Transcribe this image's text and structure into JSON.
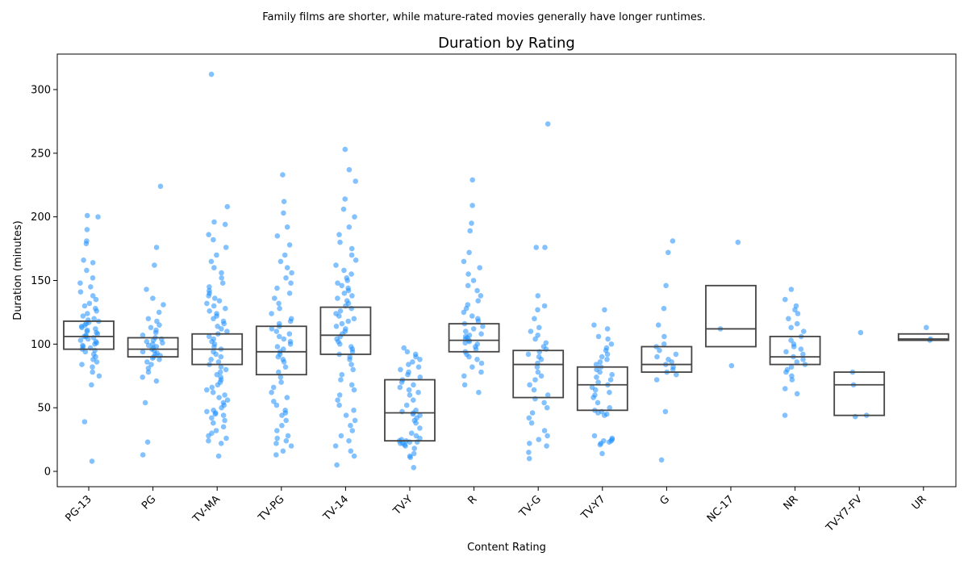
{
  "caption": "Family films are shorter, while mature-rated movies generally have longer runtimes.",
  "chart_data": {
    "type": "box+strip",
    "title": "Duration by Rating",
    "xlabel": "Content Rating",
    "ylabel": "Duration (minutes)",
    "ylim": [
      -12,
      326
    ],
    "yticks": [
      0,
      50,
      100,
      150,
      200,
      250,
      300
    ],
    "grid": false,
    "point_color": "#1e90ff",
    "box_color": "#444444",
    "categories": [
      "PG-13",
      "PG",
      "TV-MA",
      "TV-PG",
      "TV-14",
      "TV-Y",
      "R",
      "TV-G",
      "TV-Y7",
      "G",
      "NC-17",
      "NR",
      "TV-Y7-FV",
      "UR"
    ],
    "boxes": [
      {
        "category": "PG-13",
        "q1": 96,
        "median": 106,
        "q3": 118
      },
      {
        "category": "PG",
        "q1": 90,
        "median": 96,
        "q3": 105
      },
      {
        "category": "TV-MA",
        "q1": 84,
        "median": 96,
        "q3": 108
      },
      {
        "category": "TV-PG",
        "q1": 76,
        "median": 94,
        "q3": 114
      },
      {
        "category": "TV-14",
        "q1": 92,
        "median": 107,
        "q3": 129
      },
      {
        "category": "TV-Y",
        "q1": 24,
        "median": 46,
        "q3": 72
      },
      {
        "category": "R",
        "q1": 94,
        "median": 103,
        "q3": 116
      },
      {
        "category": "TV-G",
        "q1": 58,
        "median": 84,
        "q3": 95
      },
      {
        "category": "TV-Y7",
        "q1": 48,
        "median": 68,
        "q3": 82
      },
      {
        "category": "G",
        "q1": 78,
        "median": 84,
        "q3": 98
      },
      {
        "category": "NC-17",
        "q1": 98,
        "median": 112,
        "q3": 146
      },
      {
        "category": "NR",
        "q1": 84,
        "median": 90,
        "q3": 106
      },
      {
        "category": "TV-Y7-FV",
        "q1": 44,
        "median": 68,
        "q3": 78
      },
      {
        "category": "UR",
        "q1": 103,
        "median": 104,
        "q3": 108
      }
    ],
    "points": [
      {
        "category": "PG-13",
        "values": [
          8,
          39,
          68,
          75,
          78,
          82,
          84,
          86,
          88,
          90,
          92,
          94,
          95,
          96,
          97,
          98,
          99,
          100,
          101,
          102,
          103,
          104,
          105,
          106,
          106,
          107,
          108,
          109,
          110,
          111,
          112,
          113,
          114,
          115,
          116,
          117,
          118,
          119,
          120,
          122,
          124,
          126,
          128,
          130,
          132,
          135,
          138,
          141,
          145,
          148,
          152,
          158,
          164,
          166,
          179,
          181,
          190,
          200,
          201
        ]
      },
      {
        "category": "PG",
        "values": [
          13,
          23,
          54,
          71,
          74,
          78,
          81,
          84,
          86,
          88,
          89,
          90,
          91,
          92,
          93,
          94,
          95,
          96,
          97,
          98,
          99,
          100,
          101,
          102,
          103,
          104,
          105,
          107,
          109,
          111,
          113,
          115,
          118,
          120,
          125,
          131,
          136,
          143,
          162,
          176,
          224
        ]
      },
      {
        "category": "TV-MA",
        "values": [
          12,
          22,
          24,
          26,
          28,
          30,
          32,
          35,
          38,
          40,
          42,
          44,
          45,
          46,
          47,
          48,
          50,
          52,
          54,
          56,
          58,
          60,
          62,
          64,
          66,
          68,
          70,
          72,
          74,
          76,
          78,
          80,
          82,
          84,
          86,
          88,
          90,
          92,
          94,
          96,
          98,
          100,
          102,
          104,
          106,
          108,
          110,
          112,
          114,
          116,
          118,
          120,
          122,
          124,
          126,
          128,
          130,
          132,
          134,
          136,
          138,
          140,
          142,
          145,
          148,
          152,
          156,
          160,
          165,
          170,
          176,
          182,
          186,
          194,
          196,
          208,
          312
        ]
      },
      {
        "category": "TV-PG",
        "values": [
          13,
          16,
          20,
          22,
          24,
          26,
          28,
          32,
          36,
          40,
          44,
          46,
          48,
          52,
          55,
          58,
          62,
          66,
          70,
          74,
          78,
          82,
          86,
          88,
          90,
          92,
          94,
          96,
          98,
          100,
          102,
          104,
          106,
          108,
          110,
          112,
          114,
          116,
          118,
          120,
          124,
          128,
          132,
          136,
          140,
          144,
          148,
          152,
          156,
          160,
          165,
          170,
          178,
          185,
          192,
          203,
          212,
          233
        ]
      },
      {
        "category": "TV-14",
        "values": [
          5,
          12,
          16,
          20,
          24,
          28,
          32,
          36,
          40,
          44,
          48,
          52,
          56,
          60,
          64,
          68,
          72,
          76,
          80,
          84,
          88,
          90,
          92,
          94,
          96,
          98,
          100,
          102,
          104,
          106,
          108,
          110,
          112,
          114,
          116,
          118,
          120,
          122,
          124,
          126,
          128,
          130,
          132,
          134,
          136,
          138,
          140,
          142,
          144,
          146,
          148,
          150,
          152,
          155,
          158,
          162,
          166,
          170,
          175,
          180,
          186,
          192,
          200,
          206,
          214,
          228,
          237,
          253
        ]
      },
      {
        "category": "TV-Y",
        "values": [
          3,
          11,
          12,
          14,
          18,
          20,
          21,
          22,
          22,
          23,
          23,
          24,
          24,
          25,
          26,
          28,
          30,
          34,
          38,
          40,
          42,
          44,
          45,
          46,
          47,
          48,
          52,
          56,
          60,
          62,
          64,
          66,
          68,
          70,
          72,
          74,
          76,
          78,
          80,
          82,
          84,
          86,
          88,
          90,
          92,
          94,
          97
        ]
      },
      {
        "category": "R",
        "values": [
          62,
          68,
          75,
          78,
          82,
          85,
          88,
          90,
          92,
          94,
          96,
          98,
          100,
          101,
          102,
          103,
          104,
          105,
          106,
          107,
          108,
          110,
          112,
          114,
          116,
          118,
          120,
          122,
          125,
          128,
          131,
          134,
          138,
          142,
          146,
          150,
          155,
          160,
          165,
          172,
          189,
          195,
          209,
          229
        ]
      },
      {
        "category": "TV-G",
        "values": [
          10,
          15,
          20,
          22,
          25,
          28,
          32,
          38,
          42,
          46,
          50,
          54,
          57,
          60,
          64,
          68,
          72,
          75,
          78,
          82,
          85,
          88,
          90,
          92,
          94,
          96,
          98,
          101,
          104,
          107,
          110,
          113,
          120,
          127,
          130,
          138,
          176,
          176,
          273
        ]
      },
      {
        "category": "TV-Y7",
        "values": [
          14,
          21,
          22,
          23,
          24,
          24,
          25,
          26,
          28,
          44,
          45,
          46,
          47,
          48,
          50,
          54,
          58,
          60,
          62,
          64,
          66,
          68,
          70,
          72,
          74,
          76,
          78,
          80,
          82,
          84,
          86,
          88,
          90,
          92,
          95,
          97,
          100,
          104,
          106,
          112,
          115,
          127
        ]
      },
      {
        "category": "G",
        "values": [
          9,
          47,
          72,
          76,
          78,
          80,
          82,
          84,
          86,
          88,
          90,
          92,
          95,
          98,
          100,
          106,
          115,
          128,
          146,
          172,
          181
        ]
      },
      {
        "category": "NC-17",
        "values": [
          83,
          112,
          180
        ]
      },
      {
        "category": "NR",
        "values": [
          44,
          61,
          65,
          72,
          75,
          78,
          80,
          82,
          84,
          86,
          88,
          90,
          92,
          94,
          96,
          98,
          100,
          103,
          106,
          110,
          113,
          116,
          120,
          124,
          127,
          130,
          135,
          143
        ]
      },
      {
        "category": "TV-Y7-FV",
        "values": [
          43,
          44,
          68,
          78,
          109
        ]
      },
      {
        "category": "UR",
        "values": [
          103,
          104,
          113
        ]
      }
    ]
  }
}
